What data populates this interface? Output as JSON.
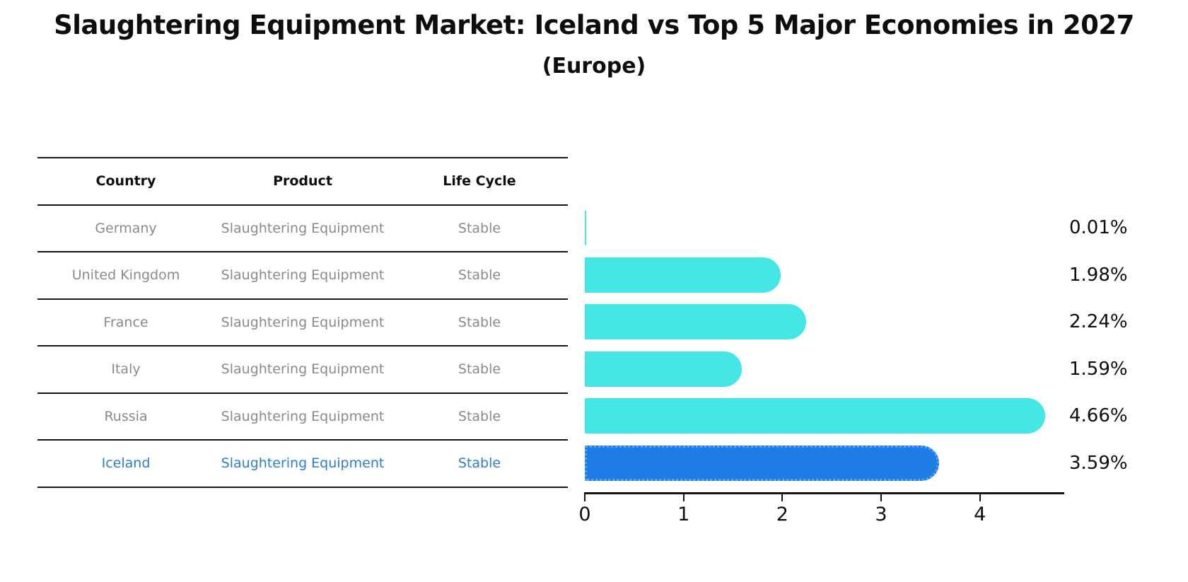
{
  "title": "Slaughtering Equipment Market: Iceland vs Top 5 Major Economies in 2027",
  "subtitle": "(Europe)",
  "table": {
    "headers": [
      "Country",
      "Product",
      "Life Cycle"
    ],
    "rows": [
      {
        "country": "Germany",
        "product": "Slaughtering Equipment",
        "life_cycle": "Stable",
        "highlight": false
      },
      {
        "country": "United Kingdom",
        "product": "Slaughtering Equipment",
        "life_cycle": "Stable",
        "highlight": false
      },
      {
        "country": "France",
        "product": "Slaughtering Equipment",
        "life_cycle": "Stable",
        "highlight": false
      },
      {
        "country": "Italy",
        "product": "Slaughtering Equipment",
        "life_cycle": "Stable",
        "highlight": false
      },
      {
        "country": "Russia",
        "product": "Slaughtering Equipment",
        "life_cycle": "Stable",
        "highlight": false
      },
      {
        "country": "Iceland",
        "product": "Slaughtering Equipment",
        "life_cycle": "Stable",
        "highlight": true
      }
    ]
  },
  "chart_data": {
    "type": "bar",
    "orientation": "horizontal",
    "categories": [
      "Germany",
      "United Kingdom",
      "France",
      "Italy",
      "Russia",
      "Iceland"
    ],
    "values": [
      0.01,
      1.98,
      2.24,
      1.59,
      4.66,
      3.59
    ],
    "value_labels": [
      "0.01%",
      "1.98%",
      "2.24%",
      "1.59%",
      "4.66%",
      "3.59%"
    ],
    "highlight_category": "Iceland",
    "xticks": [
      "0",
      "1",
      "2",
      "3",
      "4"
    ],
    "xtick_values": [
      0,
      1,
      2,
      3,
      4
    ],
    "xlim": [
      0,
      4.84
    ],
    "grid": false,
    "legend": false,
    "title": "Slaughtering Equipment Market: Iceland vs Top 5 Major Economies in 2027",
    "subtitle": "(Europe)",
    "xlabel": "",
    "ylabel": ""
  },
  "colors": {
    "bar": "#45e6e6",
    "highlight_bar": "#1f7ce6",
    "highlight_border": "#58a6f1",
    "table_text": "#8a8a8a",
    "highlight_text": "#2e7ec6",
    "line": "#141414",
    "text": "#0d0d0d",
    "background": "#ffffff"
  }
}
